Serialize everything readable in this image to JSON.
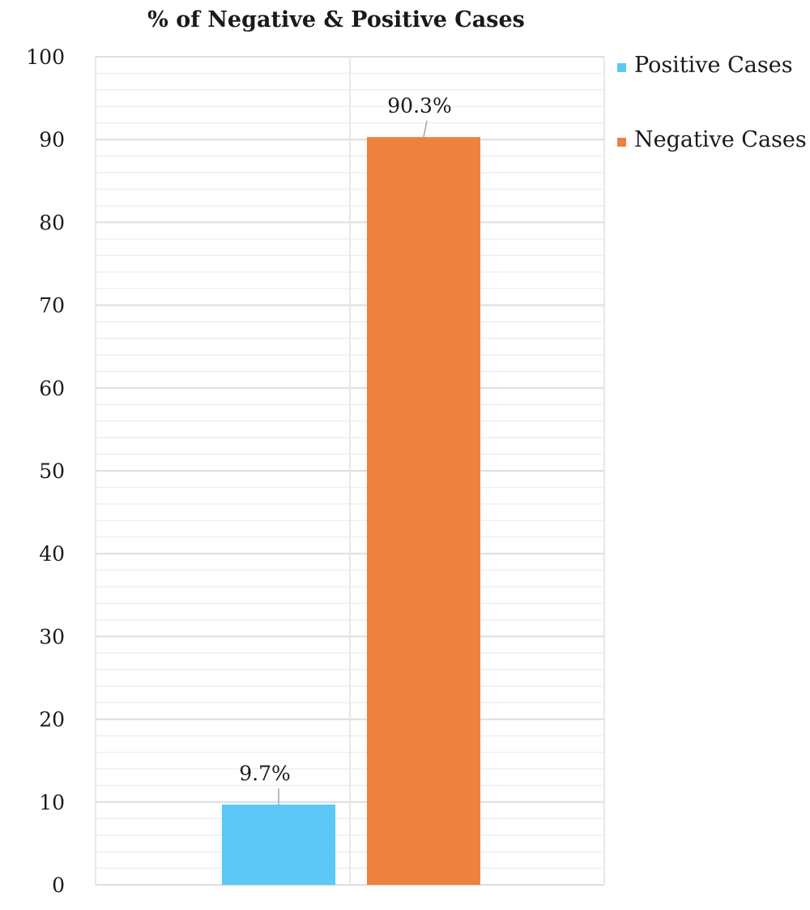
{
  "chart_data": {
    "type": "bar",
    "title": "% of Negative & Positive Cases",
    "xlabel": "",
    "ylabel": "",
    "ylim": [
      0,
      100
    ],
    "yticks": [
      0,
      10,
      20,
      30,
      40,
      50,
      60,
      70,
      80,
      90,
      100
    ],
    "grid": true,
    "legend_position": "right",
    "series": [
      {
        "name": "Positive Cases",
        "value": 9.7,
        "label": "9.7%",
        "color": "#5bc8f5"
      },
      {
        "name": "Negative Cases",
        "value": 90.3,
        "label": "90.3%",
        "color": "#ed823e"
      }
    ]
  }
}
